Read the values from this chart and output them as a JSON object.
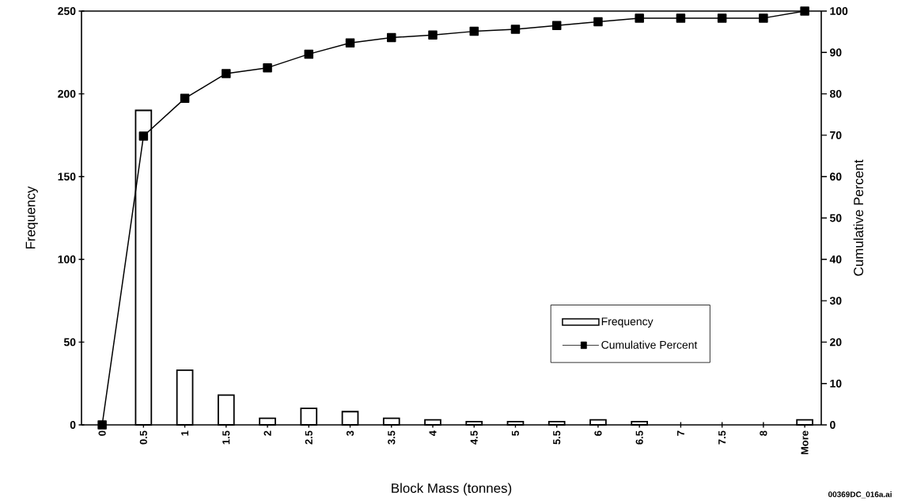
{
  "chart_data": {
    "type": "bar",
    "xlabel": "Block Mass (tonnes)",
    "ylabel": "Frequency",
    "y2label": "Cumulative Percent",
    "categories": [
      "0",
      "0.5",
      "1",
      "1.5",
      "2",
      "2.5",
      "3",
      "3.5",
      "4",
      "4.5",
      "5",
      "5.5",
      "6",
      "6.5",
      "7",
      "7.5",
      "8",
      "More"
    ],
    "series": [
      {
        "name": "Frequency",
        "color": "#ffffff",
        "values": [
          null,
          190,
          33,
          18,
          4,
          10,
          8,
          4,
          3,
          2,
          2,
          2,
          3,
          2,
          null,
          null,
          null,
          3
        ]
      },
      {
        "name": "Cumulative Percent",
        "type": "line",
        "axis": "y2",
        "color": "#000000",
        "values": [
          0,
          69.8,
          78.9,
          84.9,
          86.3,
          89.6,
          92.3,
          93.6,
          94.2,
          95.1,
          95.6,
          96.5,
          97.4,
          98.3,
          98.3,
          98.3,
          98.3,
          100
        ]
      }
    ],
    "ylim": [
      0,
      250
    ],
    "yticks": [
      0,
      50,
      100,
      150,
      200,
      250
    ],
    "y2lim": [
      0,
      100
    ],
    "y2ticks": [
      0,
      10,
      20,
      30,
      40,
      50,
      60,
      70,
      80,
      90,
      100
    ],
    "legend": "bottom right",
    "marker": "square",
    "grid": false,
    "annotations": [
      "00369DC_016a.ai"
    ]
  }
}
